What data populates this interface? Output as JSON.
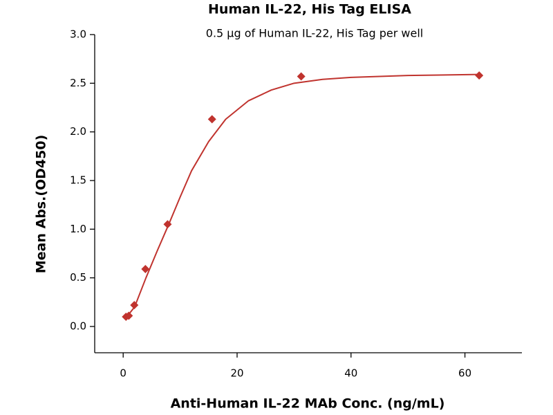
{
  "chart_data": {
    "type": "scatter",
    "title": "Human IL-22, His Tag ELISA",
    "subtitle": "0.5 μg of Human IL-22, His Tag per well",
    "x_label": "Anti-Human IL-22 MAb Conc. (ng/mL)",
    "y_label": "Mean Abs.(OD450)",
    "xlim": [
      -5,
      70
    ],
    "xticks": [
      0,
      20,
      40,
      60
    ],
    "ylim": [
      -0.27,
      3.0
    ],
    "yticks": [
      {
        "value": 0,
        "label": "0.0"
      },
      0.5,
      {
        "value": 1,
        "label": "1.0"
      },
      1.5,
      {
        "value": 2,
        "label": "2.0"
      },
      2.5,
      {
        "value": 3,
        "label": "3.0"
      }
    ],
    "series": [
      {
        "style": "points",
        "marker": "diamond",
        "color": "#c0332e",
        "x": [
          0.49,
          0.98,
          1.95,
          3.9,
          7.8,
          15.6,
          31.25,
          62.5
        ],
        "values": [
          0.1,
          0.11,
          0.22,
          0.59,
          1.05,
          2.13,
          2.57,
          2.58
        ]
      },
      {
        "style": "line",
        "color": "#c0332e",
        "x": [
          0.5,
          2,
          4,
          6,
          8,
          10,
          12,
          15,
          18,
          22,
          26,
          30,
          35,
          40,
          50,
          62.5
        ],
        "values": [
          0.09,
          0.2,
          0.5,
          0.78,
          1.05,
          1.33,
          1.6,
          1.9,
          2.13,
          2.32,
          2.43,
          2.5,
          2.54,
          2.56,
          2.58,
          2.59
        ]
      }
    ]
  }
}
